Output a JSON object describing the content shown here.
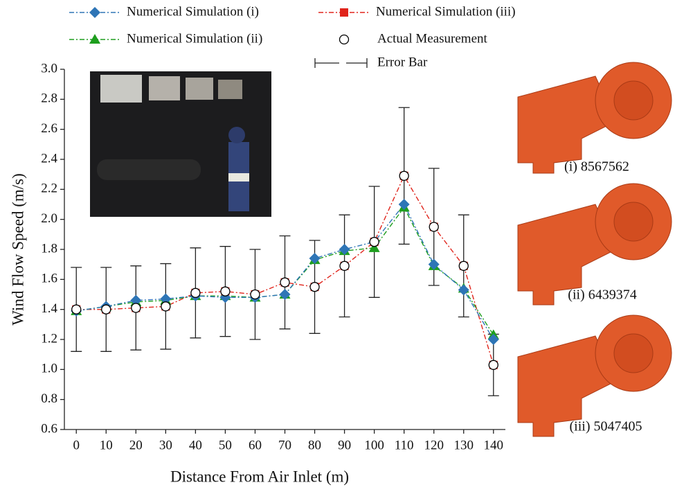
{
  "chart_data": {
    "type": "line",
    "x_label": "Distance From Air Inlet (m)",
    "y_label": "Wind Flow Speed (m/s)",
    "x": [
      0,
      10,
      20,
      30,
      40,
      50,
      60,
      70,
      80,
      90,
      100,
      110,
      120,
      130,
      140
    ],
    "xlim": [
      -4,
      144
    ],
    "xticks": [
      0,
      10,
      20,
      30,
      40,
      50,
      60,
      70,
      80,
      90,
      100,
      110,
      120,
      130,
      140
    ],
    "ylim": [
      0.6,
      3.0
    ],
    "yticks": [
      0.6,
      0.8,
      {
        "value": 1.0,
        "label": "1.0"
      },
      1.2,
      1.4,
      1.6,
      1.8,
      {
        "value": 2.0,
        "label": "2.0"
      },
      2.2,
      2.4,
      2.6,
      2.8,
      {
        "value": 3.0,
        "label": "3.0"
      }
    ],
    "series": [
      {
        "name": "Numerical Simulation (i)",
        "color": "#2e75b6",
        "marker": "diamond",
        "linestyle": "dashdot",
        "values": [
          1.39,
          1.42,
          1.46,
          1.47,
          1.49,
          1.48,
          1.48,
          1.5,
          1.74,
          1.8,
          1.85,
          2.1,
          1.7,
          1.53,
          1.2
        ]
      },
      {
        "name": "Numerical Simulation (ii)",
        "color": "#1e9e1e",
        "marker": "triangle",
        "linestyle": "dashdot",
        "values": [
          1.39,
          1.42,
          1.45,
          1.46,
          1.49,
          1.49,
          1.48,
          1.5,
          1.73,
          1.79,
          1.81,
          2.08,
          1.69,
          1.54,
          1.23
        ]
      },
      {
        "name": "Numerical Simulation (iii)",
        "color": "#e0241b",
        "marker": "square",
        "linestyle": "dashdot",
        "values": [
          1.4,
          1.4,
          1.41,
          1.42,
          1.51,
          1.52,
          1.5,
          1.58,
          1.55,
          1.69,
          1.85,
          2.29,
          1.95,
          1.69,
          1.03
        ]
      },
      {
        "name": "Actual Measurement",
        "color": "#000000",
        "marker": "circle",
        "linestyle": "none",
        "values": [
          1.4,
          1.4,
          1.41,
          1.42,
          1.51,
          1.52,
          1.5,
          1.58,
          1.55,
          1.69,
          1.85,
          2.29,
          1.95,
          1.69,
          1.03
        ],
        "errors": [
          0.28,
          0.28,
          0.28,
          0.285,
          0.3,
          0.3,
          0.3,
          0.31,
          0.31,
          0.34,
          0.37,
          0.455,
          0.39,
          0.34,
          0.205
        ]
      }
    ],
    "error_bar_label": "Error Bar",
    "annotations": [
      "(i) 8567562",
      "(ii) 6439374",
      "(iii) 5047405"
    ]
  }
}
